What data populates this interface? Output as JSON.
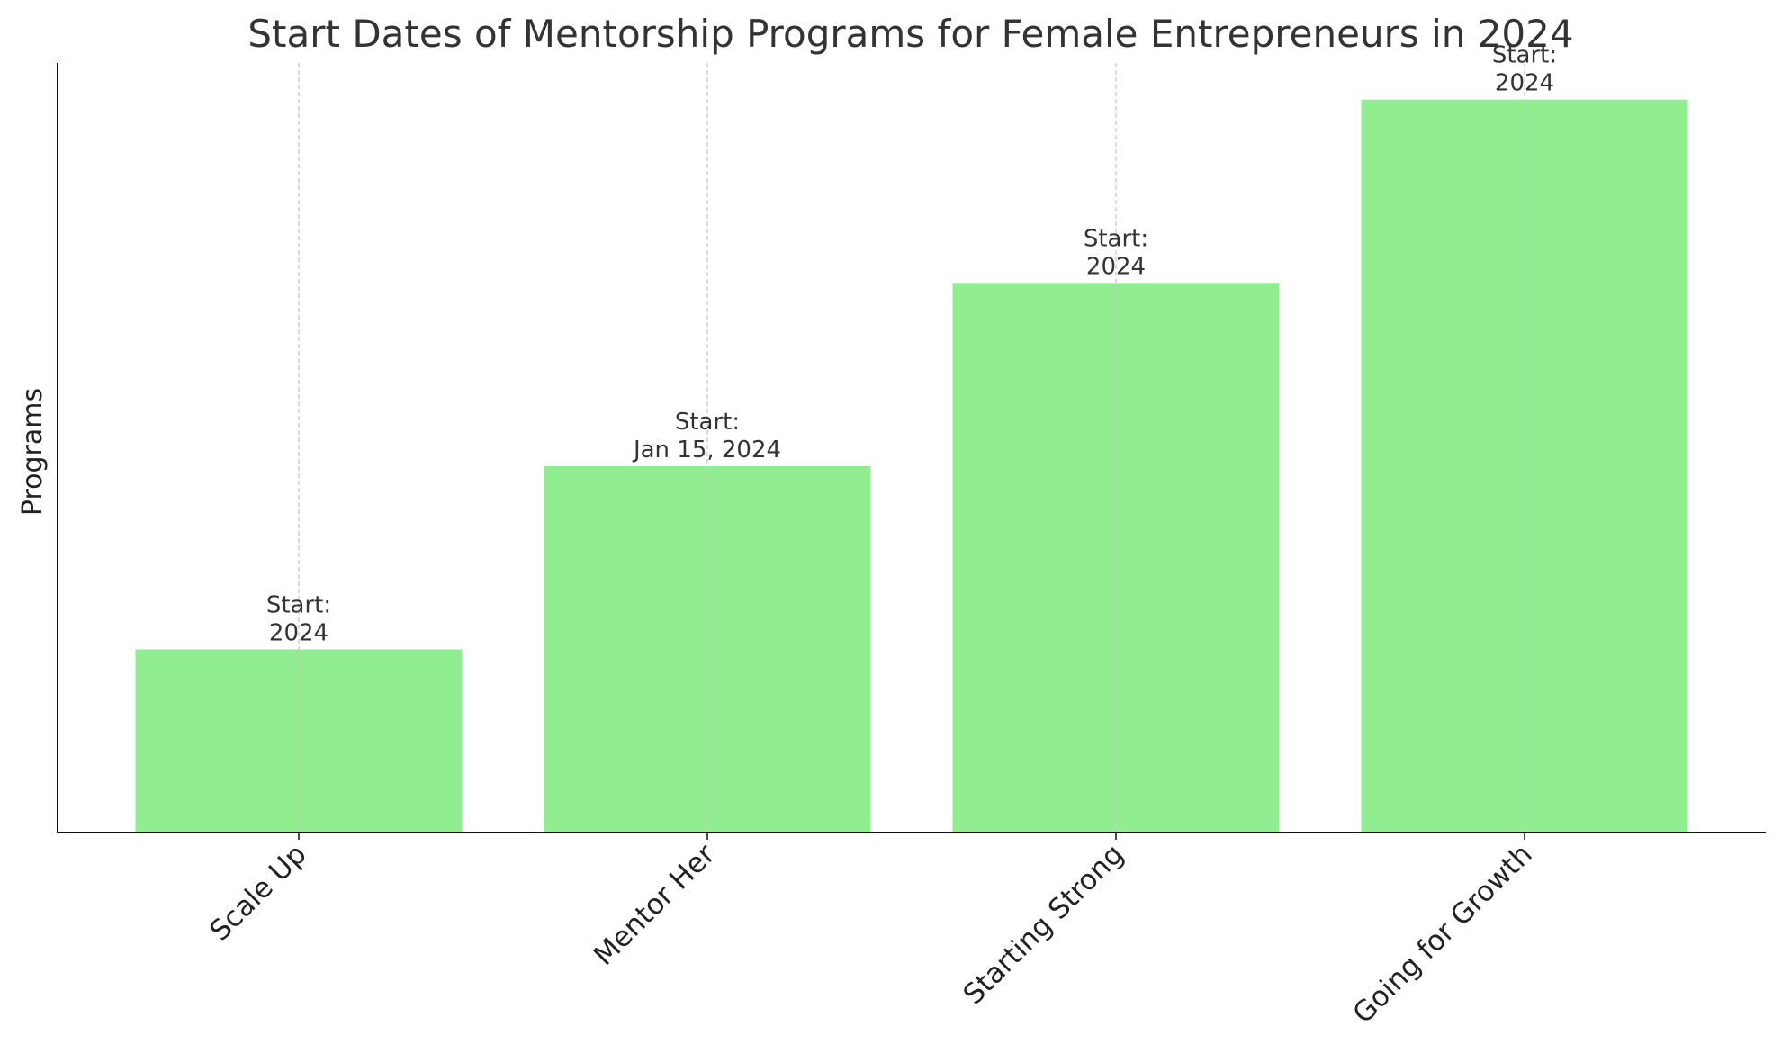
{
  "chart_data": {
    "type": "bar",
    "title": "Start Dates of Mentorship Programs for Female Entrepreneurs in 2024",
    "xlabel": "",
    "ylabel": "Programs",
    "categories": [
      "Scale Up",
      "Mentor Her",
      "Starting Strong",
      "Going for Growth"
    ],
    "values": [
      1,
      2,
      3,
      4
    ],
    "data_labels": [
      [
        "Start:",
        "2024"
      ],
      [
        "Start:",
        "Jan 15, 2024"
      ],
      [
        "Start:",
        "2024"
      ],
      [
        "Start:",
        "2024"
      ]
    ],
    "ylim": [
      0,
      4.2
    ],
    "grid": "vertical dashed",
    "legend": "none",
    "y_ticks_visible": false,
    "bar_color": "#90EE90",
    "grid_color": "#c8c8c8",
    "axis_color": "#111111"
  }
}
